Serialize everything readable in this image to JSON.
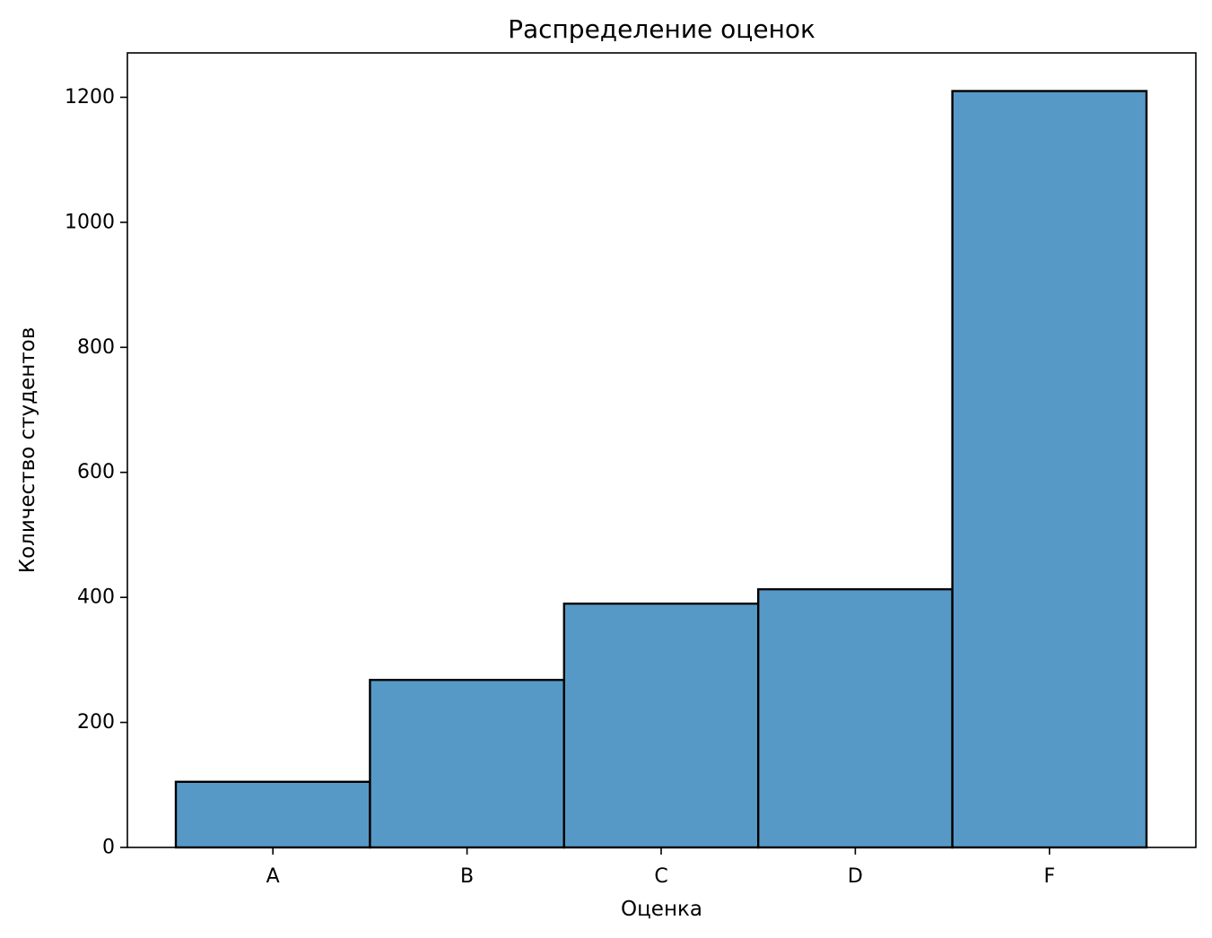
{
  "chart_data": {
    "type": "bar",
    "title": "Распределение оценок",
    "xlabel": "Оценка",
    "ylabel": "Количество студентов",
    "categories": [
      "A",
      "B",
      "C",
      "D",
      "F"
    ],
    "values": [
      105,
      268,
      390,
      413,
      1210
    ],
    "ylim": [
      0,
      1271
    ],
    "yticks": [
      0,
      200,
      400,
      600,
      800,
      1000,
      1200
    ],
    "ytick_labels": [
      "0",
      "200",
      "400",
      "600",
      "800",
      "1000",
      "1200"
    ],
    "bar_color": "#5799c6",
    "edge_color": "#000000",
    "grid": false,
    "legend": "none"
  }
}
